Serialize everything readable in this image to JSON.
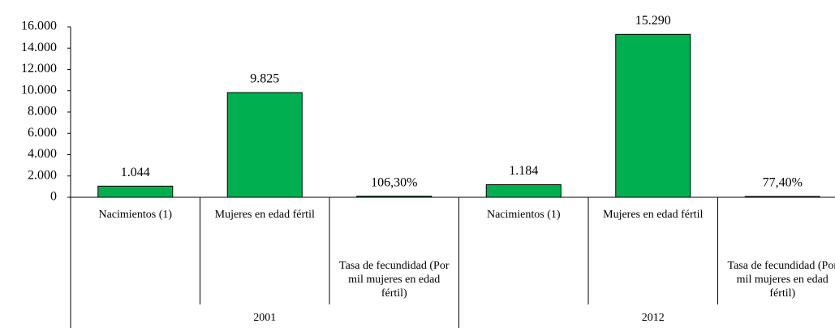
{
  "chart_data": {
    "type": "bar",
    "categories": [
      "Nacimientos (1)",
      "Mujeres en edad fértil",
      "Tasa de fecundidad (Por mil mujeres en edad fértil)",
      "Nacimientos (1)",
      "Mujeres en edad fértil",
      "Tasa de fecundidad (Por mil mujeres en edad fértil)"
    ],
    "groups": [
      "2001",
      "2012"
    ],
    "values": [
      1044,
      9825,
      106.3,
      1184,
      15290,
      77.4
    ],
    "value_labels": [
      "1.044",
      "9.825",
      "106,30%",
      "1.184",
      "15.290",
      "77,40%"
    ],
    "color": "#00b050",
    "ylim": [
      0,
      16000
    ],
    "yticks": [
      0,
      {
        "value": 2000,
        "label": "2.000"
      },
      {
        "value": 4000,
        "label": "4.000"
      },
      {
        "value": 6000,
        "label": "6.000"
      },
      {
        "value": 8000,
        "label": "8.000"
      },
      {
        "value": 10000,
        "label": "10.000"
      },
      {
        "value": 12000,
        "label": "12.000"
      },
      {
        "value": 14000,
        "label": "14.000"
      },
      {
        "value": 16000,
        "label": "16.000"
      }
    ],
    "grid": false
  }
}
